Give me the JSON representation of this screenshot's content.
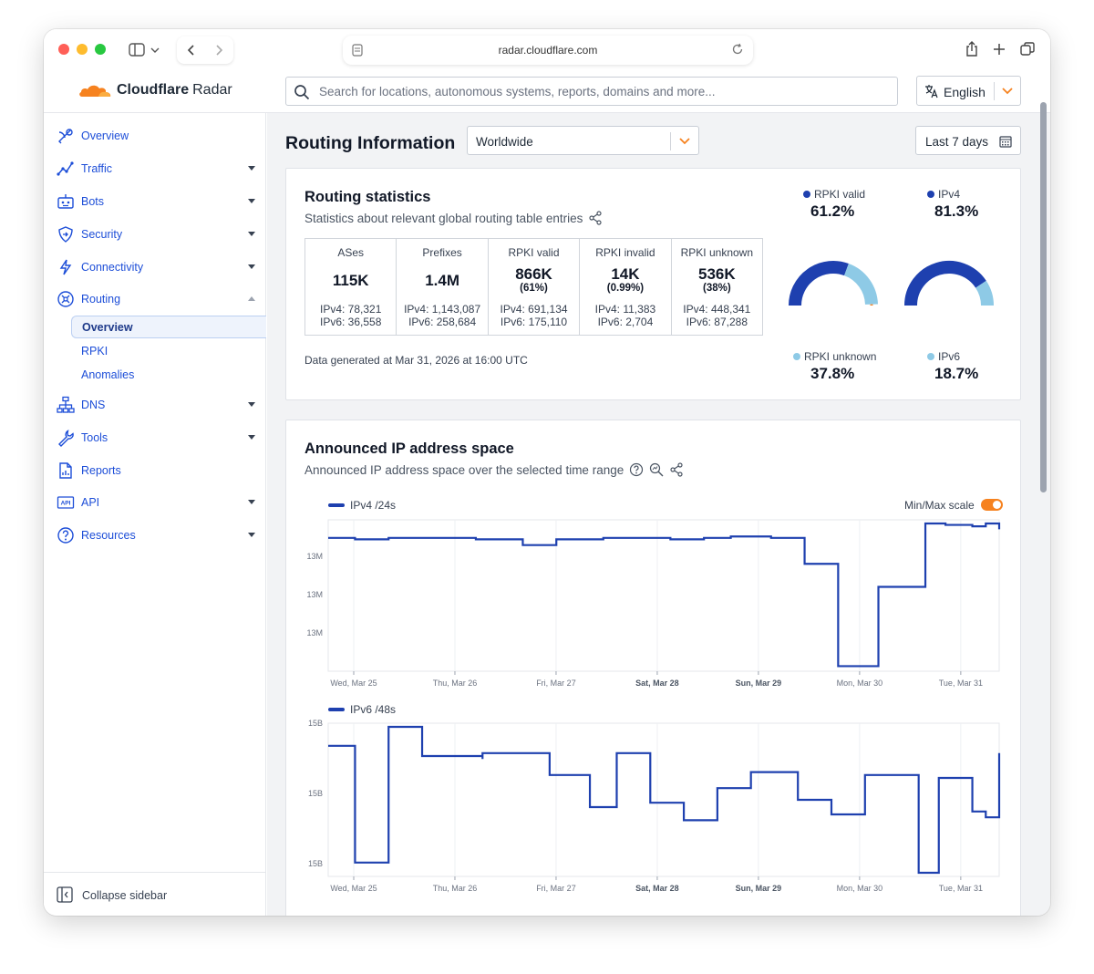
{
  "browser": {
    "url": "radar.cloudflare.com"
  },
  "app": {
    "logo_text_bold": "Cloudflare",
    "logo_text_light": "Radar",
    "search_placeholder": "Search for locations, autonomous systems, reports, domains and more...",
    "language": "English"
  },
  "sidebar": {
    "items": [
      {
        "label": "Overview",
        "icon": "radar-dish-icon",
        "caret": "none"
      },
      {
        "label": "Traffic",
        "icon": "traffic-chart-icon",
        "caret": "down"
      },
      {
        "label": "Bots",
        "icon": "robot-icon",
        "caret": "down"
      },
      {
        "label": "Security",
        "icon": "shield-icon",
        "caret": "down"
      },
      {
        "label": "Connectivity",
        "icon": "lightning-icon",
        "caret": "down"
      },
      {
        "label": "Routing",
        "icon": "routing-icon",
        "caret": "up"
      }
    ],
    "routing_sub": [
      "Overview",
      "RPKI",
      "Anomalies"
    ],
    "items_after": [
      {
        "label": "DNS",
        "icon": "dns-hierarchy-icon",
        "caret": "down"
      },
      {
        "label": "Tools",
        "icon": "wrench-icon",
        "caret": "down"
      },
      {
        "label": "Reports",
        "icon": "report-document-icon",
        "caret": "none"
      },
      {
        "label": "API",
        "icon": "api-icon",
        "caret": "down"
      },
      {
        "label": "Resources",
        "icon": "help-circle-icon",
        "caret": "down"
      }
    ],
    "collapse_label": "Collapse sidebar"
  },
  "main": {
    "title": "Routing Information",
    "location": "Worldwide",
    "date_range": "Last 7 days"
  },
  "routing_stats": {
    "title": "Routing statistics",
    "subtitle": "Statistics about relevant global routing table entries",
    "columns": [
      {
        "header": "ASes",
        "value": "115K",
        "pct": "",
        "ipv4": "IPv4: 78,321",
        "ipv6": "IPv6: 36,558"
      },
      {
        "header": "Prefixes",
        "value": "1.4M",
        "pct": "",
        "ipv4": "IPv4: 1,143,087",
        "ipv6": "IPv6: 258,684"
      },
      {
        "header": "RPKI valid",
        "value": "866K",
        "pct": "(61%)",
        "ipv4": "IPv4: 691,134",
        "ipv6": "IPv6: 175,110"
      },
      {
        "header": "RPKI invalid",
        "value": "14K",
        "pct": "(0.99%)",
        "ipv4": "IPv4: 11,383",
        "ipv6": "IPv6: 2,704"
      },
      {
        "header": "RPKI unknown",
        "value": "536K",
        "pct": "(38%)",
        "ipv4": "IPv4: 448,341",
        "ipv6": "IPv6: 87,288"
      }
    ],
    "generated": "Data generated at Mar 31, 2026 at 16:00 UTC",
    "gauges": [
      {
        "top_label": "RPKI valid",
        "top_value": "61.2%",
        "top_fraction": 0.612,
        "top_color": "#1e40af",
        "bottom_label": "RPKI unknown",
        "bottom_value": "37.8%",
        "bottom_fraction": 0.378,
        "bottom_color": "#8ecae6",
        "invalid_fraction": 0.01,
        "invalid_color": "#f6821f"
      },
      {
        "top_label": "IPv4",
        "top_value": "81.3%",
        "top_fraction": 0.813,
        "top_color": "#1e40af",
        "bottom_label": "IPv6",
        "bottom_value": "18.7%",
        "bottom_fraction": 0.187,
        "bottom_color": "#8ecae6"
      }
    ]
  },
  "ip_space": {
    "title": "Announced IP address space",
    "subtitle": "Announced IP address space over the selected time range",
    "minmax_label": "Min/Max scale",
    "minmax_on": true,
    "colors": {
      "line": "#1e40af"
    }
  },
  "chart_data": [
    {
      "type": "line",
      "series": [
        {
          "name": "IPv4 /24s",
          "values": [
            0.9,
            0.89,
            0.9,
            0.89,
            0.89,
            0.85,
            0.89,
            0.9,
            0.9,
            0.89,
            0.9,
            0.91,
            0.9,
            0.72,
            0.01,
            0.56,
            1.0,
            0.99,
            0.98,
            1.0,
            0.96
          ]
        }
      ],
      "x_segments": [
        0.0,
        0.04,
        0.09,
        0.22,
        0.23,
        0.29,
        0.34,
        0.41,
        0.47,
        0.51,
        0.56,
        0.6,
        0.66,
        0.71,
        0.76,
        0.82,
        0.89,
        0.92,
        0.96,
        0.98,
        1.0
      ],
      "xticks": [
        "Wed, Mar 25",
        "Thu, Mar 26",
        "Fri, Mar 27",
        "Sat, Mar 28",
        "Sun, Mar 29",
        "Mon, Mar 30",
        "Tue, Mar 31"
      ],
      "yticks": [
        "13M",
        "13M",
        "13M"
      ]
    },
    {
      "type": "line",
      "series": [
        {
          "name": "IPv6 /48s",
          "values": [
            0.87,
            0.07,
            1.0,
            0.8,
            0.78,
            0.82,
            0.67,
            0.45,
            0.82,
            0.48,
            0.36,
            0.58,
            0.69,
            0.5,
            0.4,
            0.67,
            0.0,
            0.65,
            0.42,
            0.38,
            0.65,
            0.82
          ]
        }
      ],
      "x_segments": [
        0.0,
        0.04,
        0.09,
        0.14,
        0.23,
        0.23,
        0.33,
        0.39,
        0.43,
        0.48,
        0.53,
        0.58,
        0.63,
        0.7,
        0.75,
        0.8,
        0.88,
        0.91,
        0.96,
        0.98,
        1.0,
        1.0
      ],
      "xticks": [
        "Wed, Mar 25",
        "Thu, Mar 26",
        "Fri, Mar 27",
        "Sat, Mar 28",
        "Sun, Mar 29",
        "Mon, Mar 30",
        "Tue, Mar 31"
      ],
      "yticks": [
        "15B",
        "15B",
        "15B"
      ]
    }
  ]
}
